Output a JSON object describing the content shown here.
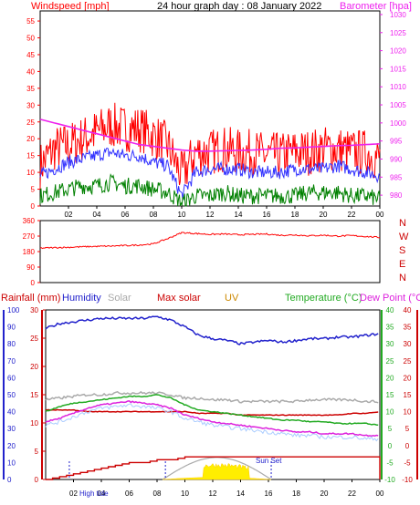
{
  "colors": {
    "windspeed": "#ff0000",
    "wind_avg": "#3333ff",
    "wind_low": "#008000",
    "barometer": "#ee22ee",
    "direction": "#ff0000",
    "dir_label": "#cc0000",
    "humidity": "#2222cc",
    "max_solar": "#cc0000",
    "solar": "#aaaaaa",
    "temperature": "#22aa22",
    "dewpoint": "#dd22dd",
    "feels": "#aaccff",
    "rainfall": "#cc0000",
    "uv": "#ffee00",
    "uv_label": "#cc8800",
    "sun": "#aaaaaa"
  },
  "header": {
    "windspeed_label": "Windspeed [mph]",
    "title": "24 hour graph day : 08 January 2022",
    "barometer_label": "Barometer [hpa]"
  },
  "wind_panel": {
    "left_ticks": [
      "0",
      "5",
      "10",
      "15",
      "20",
      "25",
      "30",
      "35",
      "40",
      "45",
      "50",
      "55"
    ],
    "right_ticks": [
      "980",
      "985",
      "990",
      "995",
      "1000",
      "1005",
      "1010",
      "1015",
      "1020",
      "1025",
      "1030"
    ],
    "x_ticks": [
      "02",
      "04",
      "06",
      "08",
      "10",
      "12",
      "14",
      "16",
      "18",
      "20",
      "22",
      "00"
    ]
  },
  "dir_panel": {
    "left_ticks": [
      "0",
      "90",
      "180",
      "270",
      "360"
    ],
    "compass": [
      "N",
      "W",
      "S",
      "E",
      "N"
    ]
  },
  "legend": {
    "rainfall": "Rainfall (mm)",
    "humidity": "Humidity",
    "solar": "Solar",
    "max_solar": "Max solar",
    "uv": "UV",
    "temperature": "Temperature (°C)",
    "dewpoint": "Dew Point (°C)"
  },
  "bottom_panel": {
    "left_ticks": [
      "0",
      "10",
      "20",
      "30",
      "40",
      "50",
      "60",
      "70",
      "80",
      "90",
      "100"
    ],
    "second_ticks": [
      "0",
      "5",
      "10",
      "15",
      "20",
      "25",
      "30"
    ],
    "right_ticks": [
      "-10",
      "-5",
      "0",
      "5",
      "10",
      "15",
      "20",
      "25",
      "30",
      "35",
      "40"
    ],
    "x_ticks": [
      "02",
      "04",
      "06",
      "08",
      "10",
      "12",
      "14",
      "16",
      "18",
      "20",
      "22",
      "00"
    ],
    "high_tide": "High tide",
    "sun_set": "Sun Set"
  },
  "chart_data": [
    {
      "type": "line",
      "title": "24 hour graph day : 08 January 2022",
      "ylabel": "Windspeed [mph]",
      "y2label": "Barometer [hpa]",
      "ylim": [
        0,
        58
      ],
      "y2lim": [
        977,
        1031
      ],
      "x_hours": [
        0,
        1,
        2,
        3,
        4,
        5,
        6,
        7,
        8,
        9,
        10,
        11,
        12,
        13,
        14,
        15,
        16,
        17,
        18,
        19,
        20,
        21,
        22,
        23,
        24
      ],
      "series": [
        {
          "name": "Windspeed",
          "axis": "left",
          "values": [
            12,
            17,
            18,
            20,
            22,
            24,
            23,
            23,
            21,
            18,
            9,
            16,
            16,
            17,
            16,
            16,
            15,
            15,
            16,
            16,
            17,
            17,
            16,
            16,
            14
          ]
        },
        {
          "name": "Average",
          "axis": "left",
          "values": [
            9,
            11,
            13,
            14,
            15,
            16,
            15,
            15,
            13,
            12,
            3,
            10,
            11,
            11,
            11,
            10,
            10,
            10,
            11,
            11,
            11,
            12,
            11,
            10,
            9
          ]
        },
        {
          "name": "Low",
          "axis": "left",
          "values": [
            3,
            4,
            5,
            6,
            6,
            7,
            6,
            6,
            5,
            4,
            1,
            3,
            3,
            4,
            3,
            3,
            3,
            3,
            3,
            4,
            4,
            4,
            3,
            3,
            2
          ]
        },
        {
          "name": "Barometer",
          "axis": "right",
          "values": [
            1001,
            1000,
            999,
            998,
            997,
            996,
            995,
            994,
            993.5,
            993,
            992.5,
            992.2,
            992.2,
            992.3,
            992.4,
            992.5,
            992.7,
            993,
            993.1,
            993.3,
            993.5,
            993.7,
            993.8,
            994,
            994.2
          ]
        }
      ]
    },
    {
      "type": "line",
      "ylim": [
        0,
        360
      ],
      "x_hours": [
        0,
        1,
        2,
        3,
        4,
        5,
        6,
        7,
        8,
        9,
        10,
        11,
        12,
        13,
        14,
        15,
        16,
        17,
        18,
        19,
        20,
        21,
        22,
        23,
        24
      ],
      "series": [
        {
          "name": "Wind direction",
          "values": [
            200,
            203,
            205,
            208,
            210,
            212,
            215,
            218,
            225,
            255,
            290,
            285,
            280,
            282,
            278,
            280,
            282,
            275,
            277,
            272,
            275,
            270,
            273,
            268,
            262
          ]
        }
      ]
    },
    {
      "type": "line",
      "ylim": [
        0,
        100
      ],
      "y2lim": [
        0,
        30
      ],
      "y3lim": [
        -10,
        40
      ],
      "x_hours": [
        0,
        1,
        2,
        3,
        4,
        5,
        6,
        7,
        8,
        9,
        10,
        11,
        12,
        13,
        14,
        15,
        16,
        17,
        18,
        19,
        20,
        21,
        22,
        23,
        24
      ],
      "series": [
        {
          "name": "Humidity",
          "axis": "left",
          "values": [
            89,
            92,
            93,
            94,
            95,
            95,
            95,
            95,
            96,
            94,
            90,
            85,
            83,
            82,
            80,
            81,
            82,
            81,
            82,
            83,
            83,
            84,
            84,
            85,
            86
          ]
        },
        {
          "name": "Max solar",
          "axis": "left",
          "values": [
            41,
            41,
            41,
            40,
            40,
            40,
            40,
            40,
            40,
            40,
            40,
            39,
            39,
            39,
            38,
            38,
            38,
            38,
            38,
            38,
            38,
            38,
            39,
            39,
            40
          ]
        },
        {
          "name": "Solar",
          "axis": "left",
          "values": [
            47,
            48,
            49,
            50,
            50,
            51,
            51,
            51,
            51,
            50,
            48,
            48,
            47,
            47,
            46,
            46,
            46,
            46,
            46,
            47,
            47,
            47,
            47,
            46,
            46
          ]
        },
        {
          "name": "Temperature",
          "axis": "right",
          "values": [
            10,
            11.5,
            12.5,
            13,
            13.5,
            14,
            14.5,
            14.5,
            15,
            14,
            12,
            10.5,
            10,
            9.5,
            9,
            8.5,
            8,
            7.5,
            7.5,
            7,
            7,
            6.5,
            6.5,
            6.5,
            6
          ]
        },
        {
          "name": "Dew Point",
          "axis": "right",
          "values": [
            7,
            8,
            9.5,
            11,
            12,
            12.5,
            13,
            12.5,
            12,
            11,
            9,
            8,
            7,
            6.5,
            6,
            5.5,
            5,
            4.5,
            4,
            4,
            3.5,
            3.5,
            3.5,
            3,
            3
          ]
        },
        {
          "name": "Rainfall",
          "axis": "second",
          "values": [
            0,
            0.5,
            1,
            1.5,
            2,
            2.5,
            3,
            3,
            3.5,
            3.5,
            4,
            4,
            4,
            4,
            4,
            4,
            4,
            4,
            4,
            4,
            4,
            4,
            4,
            4,
            4
          ]
        },
        {
          "name": "UV",
          "axis": "left",
          "values": [
            0,
            0,
            0,
            0,
            0,
            0,
            0,
            0,
            0,
            0,
            0,
            0,
            1,
            4,
            3,
            1,
            0,
            0,
            0,
            0,
            0,
            0,
            0,
            0,
            0
          ]
        }
      ]
    }
  ]
}
